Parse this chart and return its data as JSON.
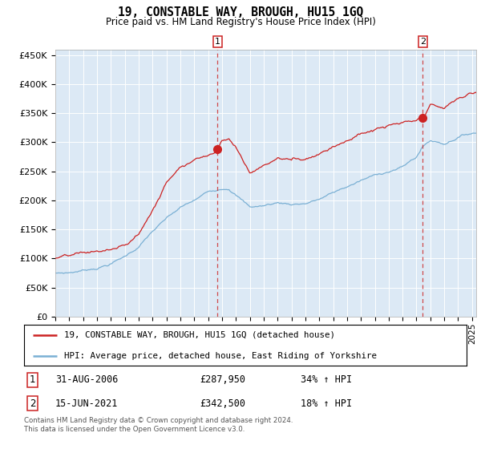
{
  "title": "19, CONSTABLE WAY, BROUGH, HU15 1GQ",
  "subtitle": "Price paid vs. HM Land Registry's House Price Index (HPI)",
  "plot_bg_color": "#dce9f5",
  "ylim": [
    0,
    460000
  ],
  "yticks": [
    0,
    50000,
    100000,
    150000,
    200000,
    250000,
    300000,
    350000,
    400000,
    450000
  ],
  "xlim_start": 1995.0,
  "xlim_end": 2025.3,
  "sale1_date": 2006.667,
  "sale1_price": 287950,
  "sale2_date": 2021.458,
  "sale2_price": 342500,
  "legend_line1": "19, CONSTABLE WAY, BROUGH, HU15 1GQ (detached house)",
  "legend_line2": "HPI: Average price, detached house, East Riding of Yorkshire",
  "table_row1": [
    "1",
    "31-AUG-2006",
    "£287,950",
    "34% ↑ HPI"
  ],
  "table_row2": [
    "2",
    "15-JUN-2021",
    "£342,500",
    "18% ↑ HPI"
  ],
  "footer": "Contains HM Land Registry data © Crown copyright and database right 2024.\nThis data is licensed under the Open Government Licence v3.0.",
  "red_color": "#cc2222",
  "blue_color": "#7ab0d4",
  "hpi_knots_t": [
    1995.0,
    1996.0,
    1997.0,
    1998.0,
    1999.0,
    2000.0,
    2001.0,
    2002.0,
    2003.0,
    2004.0,
    2005.0,
    2006.0,
    2006.667,
    2007.0,
    2007.5,
    2008.0,
    2009.0,
    2010.0,
    2011.0,
    2012.0,
    2013.0,
    2014.0,
    2015.0,
    2016.0,
    2017.0,
    2018.0,
    2019.0,
    2020.0,
    2021.0,
    2021.458,
    2022.0,
    2023.0,
    2024.0,
    2025.0
  ],
  "hpi_knots_v": [
    75000,
    76000,
    80000,
    85000,
    93000,
    105000,
    122000,
    148000,
    168000,
    185000,
    196000,
    210000,
    215000,
    218000,
    220000,
    210000,
    188000,
    190000,
    195000,
    193000,
    195000,
    202000,
    212000,
    222000,
    232000,
    240000,
    248000,
    255000,
    272000,
    290000,
    300000,
    295000,
    308000,
    315000
  ],
  "prop_knots_t": [
    1995.0,
    1996.0,
    1997.0,
    1998.0,
    1999.0,
    2000.0,
    2001.0,
    2002.0,
    2003.0,
    2004.0,
    2005.0,
    2006.0,
    2006.667,
    2007.0,
    2007.5,
    2008.0,
    2009.0,
    2010.0,
    2011.0,
    2012.0,
    2013.0,
    2014.0,
    2015.0,
    2016.0,
    2017.0,
    2018.0,
    2019.0,
    2020.0,
    2021.0,
    2021.458,
    2022.0,
    2023.0,
    2024.0,
    2025.0
  ],
  "prop_knots_v": [
    100000,
    101000,
    103000,
    105000,
    108000,
    113000,
    133000,
    175000,
    222000,
    255000,
    268000,
    278000,
    287950,
    308000,
    310000,
    295000,
    252000,
    265000,
    278000,
    275000,
    278000,
    290000,
    305000,
    318000,
    328000,
    335000,
    340000,
    342000,
    342000,
    342500,
    365000,
    360000,
    375000,
    385000
  ]
}
